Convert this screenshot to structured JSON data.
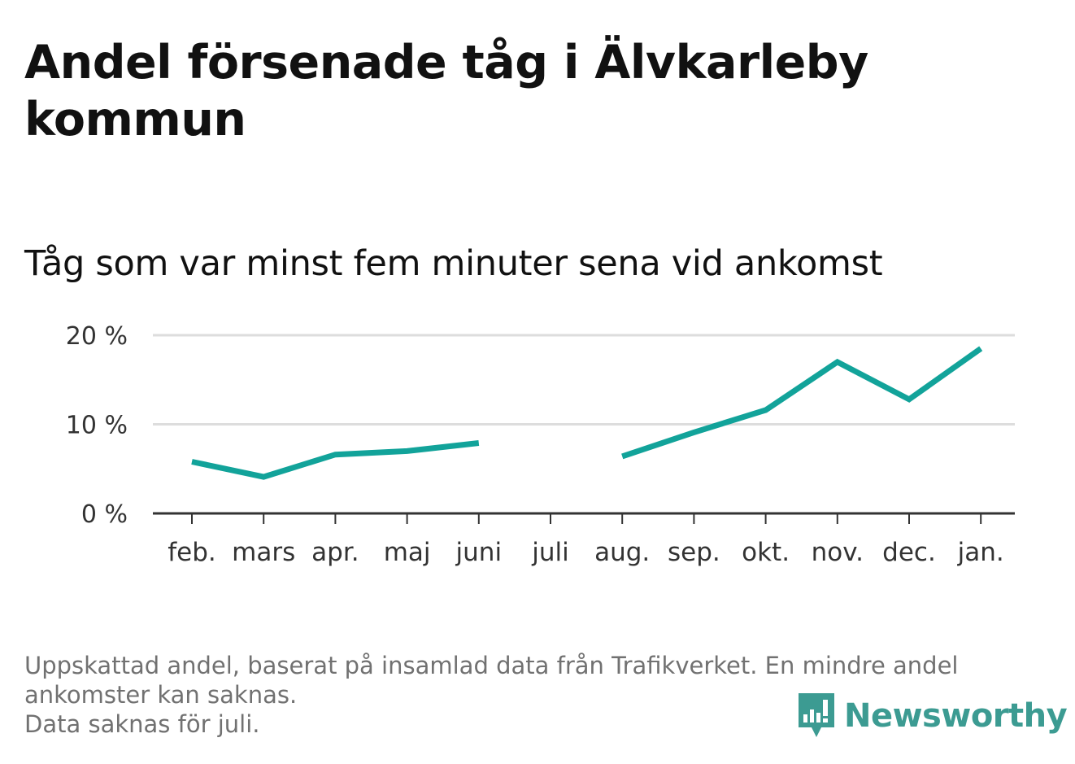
{
  "title": "Andel försenade tåg i Älvkarleby kommun",
  "subtitle": "Tåg som var minst fem minuter sena vid ankomst",
  "footnote": {
    "line1": "Uppskattad andel, baserat på insamlad data från Trafikverket. En mindre andel",
    "line2": "ankomster kan saknas.",
    "line3": "Data saknas för juli."
  },
  "logo": {
    "text": "Newsworthy",
    "icon": "newsworthy-bar-chart-icon",
    "color": "#3c9b92"
  },
  "colors": {
    "line": "#12a39a",
    "grid": "#dddddd",
    "axis": "#333333",
    "text": "#111111",
    "footnote": "#717171"
  },
  "chart_data": {
    "type": "line",
    "categories": [
      "feb.",
      "mars",
      "apr.",
      "maj",
      "juni",
      "juli",
      "aug.",
      "sep.",
      "okt.",
      "nov.",
      "dec.",
      "jan."
    ],
    "series": [
      {
        "values": [
          5.8,
          4.1,
          6.6,
          7.0,
          7.9,
          null,
          6.4,
          9.1,
          11.6,
          17.0,
          12.8,
          18.5
        ]
      }
    ],
    "y_ticks": [
      {
        "value": 0,
        "label": "0 %"
      },
      {
        "value": 10,
        "label": "10 %"
      },
      {
        "value": 20,
        "label": "20 %"
      }
    ],
    "ylim": [
      0,
      20
    ],
    "grid": true,
    "legend": "none"
  }
}
